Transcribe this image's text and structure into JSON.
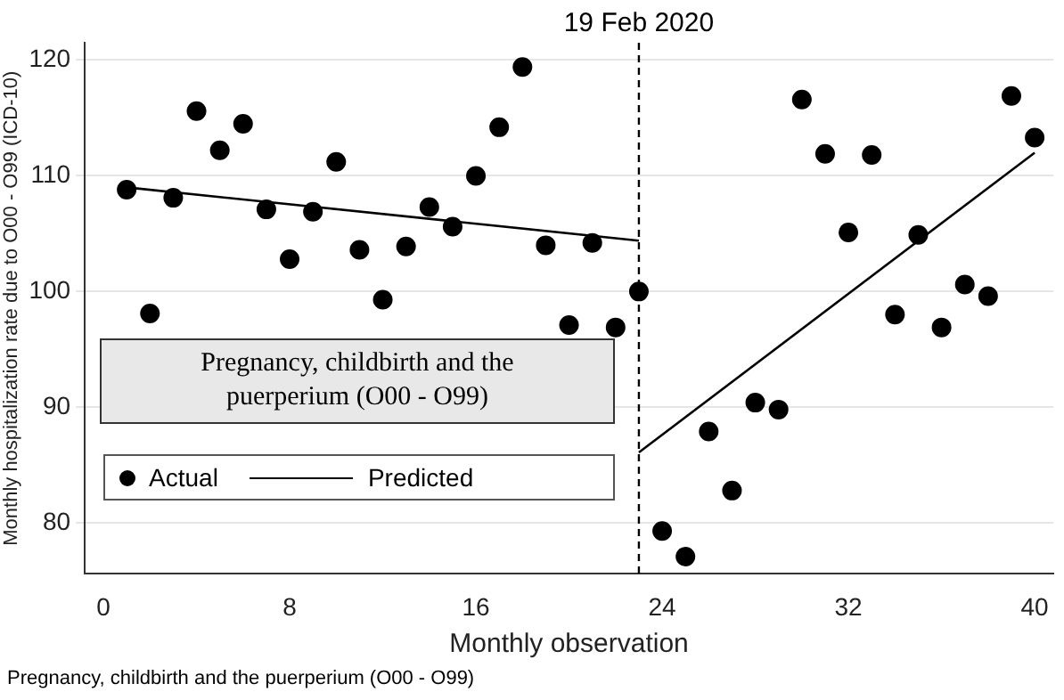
{
  "chart_data": {
    "type": "scatter",
    "xlabel": "Monthly observation",
    "ylabel": "Monthly hospitalization rate due to O00 - O99 (ICD-10)",
    "xlim": [
      -0.8,
      40.8
    ],
    "xticks": [
      0,
      8,
      16,
      24,
      32,
      40
    ],
    "ylim": [
      75.6,
      121.5
    ],
    "yticks": [
      80,
      90,
      100,
      110,
      120
    ],
    "grid": "y",
    "legend": "bottom left",
    "series": [
      {
        "name": "Actual",
        "marker": "circle",
        "color": "#000000",
        "x": [
          1,
          2,
          3,
          4,
          5,
          6,
          7,
          8,
          9,
          10,
          11,
          12,
          13,
          14,
          15,
          16,
          17,
          18,
          19,
          20,
          21,
          22,
          23,
          24,
          25,
          26,
          27,
          28,
          29,
          30,
          31,
          32,
          33,
          34,
          35,
          36,
          37,
          38,
          39,
          40
        ],
        "values": [
          108.8,
          98.1,
          108.1,
          115.6,
          112.2,
          114.5,
          107.1,
          102.8,
          106.9,
          111.2,
          103.6,
          99.3,
          103.9,
          107.3,
          105.6,
          110.0,
          114.2,
          119.4,
          104.0,
          97.1,
          104.2,
          96.9,
          100.0,
          79.3,
          77.1,
          87.9,
          82.8,
          90.4,
          89.8,
          116.6,
          111.9,
          105.1,
          111.8,
          98.0,
          104.9,
          96.9,
          100.6,
          99.6,
          116.9,
          113.3
        ]
      },
      {
        "name": "Predicted",
        "type": "line",
        "marker": "none",
        "color": "#000000",
        "x": [
          1,
          23
        ],
        "values": [
          109.0,
          104.4
        ]
      },
      {
        "type": "line",
        "marker": "none",
        "color": "#000000",
        "x": [
          23,
          40
        ],
        "values": [
          86.1,
          112.0
        ]
      }
    ],
    "ref_lines": [
      {
        "axis": "x",
        "value": 23,
        "label": "19 Feb 2020",
        "line_style": "dashed",
        "color": "#000000"
      }
    ],
    "annotations": [
      "Pregnancy, childbirth and the puerperium (O00 - O99)",
      "Pregnancy, childbirth and the puerperium (O00 - O99)"
    ]
  }
}
